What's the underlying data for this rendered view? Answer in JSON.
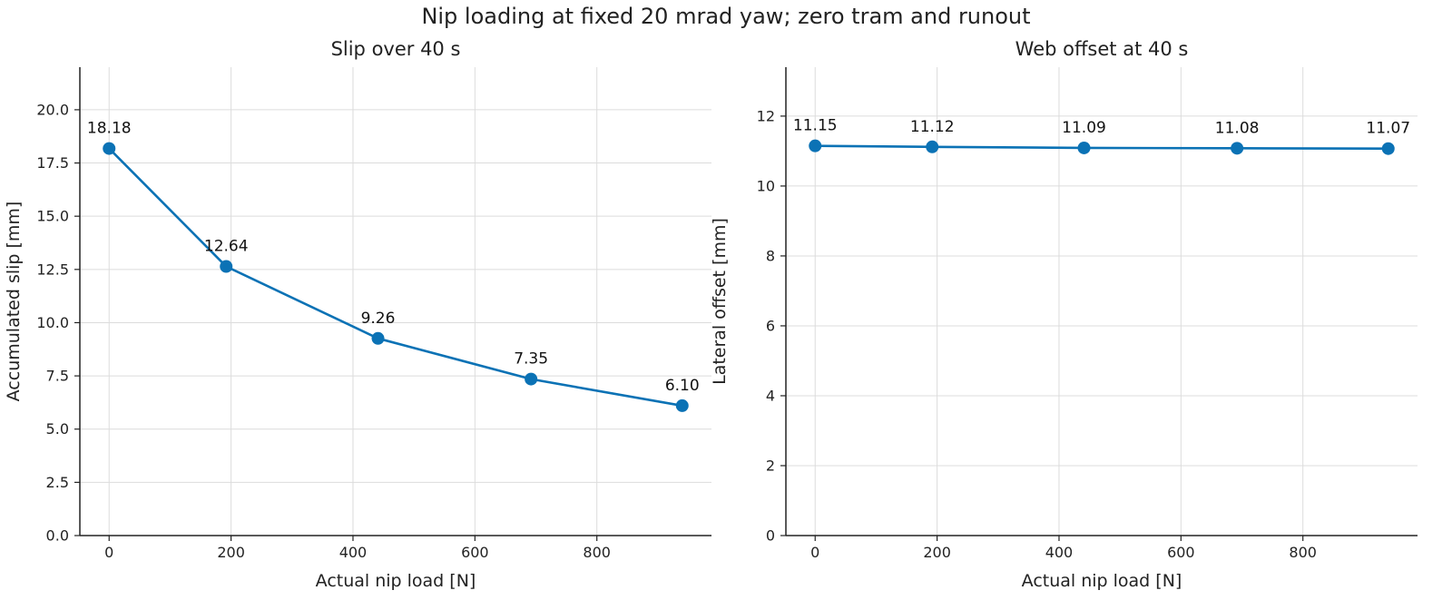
{
  "figure": {
    "title": "Nip loading at fixed 20 mrad yaw; zero tram and runout"
  },
  "chart_data": [
    {
      "type": "line",
      "title": "Slip over 40 s",
      "xlabel": "Actual nip load [N]",
      "ylabel": "Accumulated slip [mm]",
      "x": [
        0,
        192,
        441,
        692,
        940
      ],
      "values": [
        18.18,
        12.64,
        9.26,
        7.35,
        6.1
      ],
      "value_labels": [
        "18.18",
        "12.64",
        "9.26",
        "7.35",
        "6.10"
      ],
      "xlim": [
        -48,
        988
      ],
      "ylim": [
        0,
        22
      ],
      "xticks": [
        0,
        200,
        400,
        600,
        800
      ],
      "yticks": [
        0,
        2.5,
        5,
        7.5,
        10,
        12.5,
        15,
        17.5,
        20
      ],
      "ytick_labels": [
        "0.0",
        "2.5",
        "5.0",
        "7.5",
        "10.0",
        "12.5",
        "15.0",
        "17.5",
        "20.0"
      ],
      "grid": true,
      "color": "#0b72b5"
    },
    {
      "type": "line",
      "title": "Web offset at 40 s",
      "xlabel": "Actual nip load [N]",
      "ylabel": "Lateral offset [mm]",
      "x": [
        0,
        192,
        441,
        692,
        940
      ],
      "values": [
        11.15,
        11.12,
        11.09,
        11.08,
        11.07
      ],
      "value_labels": [
        "11.15",
        "11.12",
        "11.09",
        "11.08",
        "11.07"
      ],
      "xlim": [
        -48,
        988
      ],
      "ylim": [
        0,
        13.4
      ],
      "xticks": [
        0,
        200,
        400,
        600,
        800
      ],
      "yticks": [
        0,
        2,
        4,
        6,
        8,
        10,
        12
      ],
      "ytick_labels": [
        "0",
        "2",
        "4",
        "6",
        "8",
        "10",
        "12"
      ],
      "grid": true,
      "color": "#0b72b5"
    }
  ]
}
